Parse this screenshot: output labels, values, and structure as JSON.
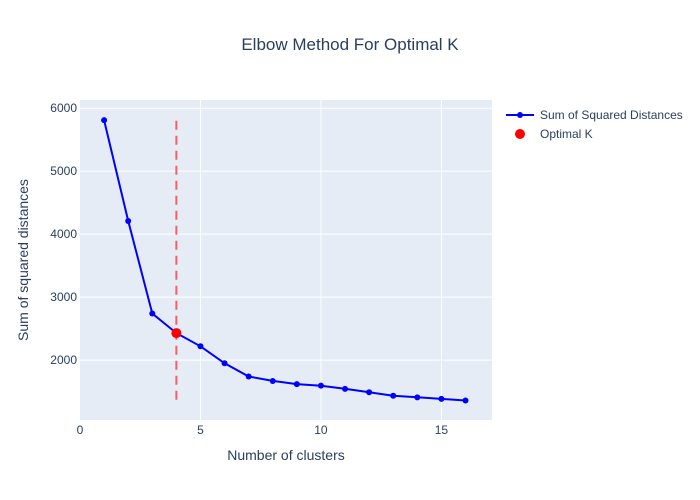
{
  "chart_data": {
    "type": "line",
    "title": "Elbow Method For Optimal K",
    "xlabel": "Number of clusters",
    "ylabel": "Sum of squared distances",
    "xlim": [
      0,
      17.1
    ],
    "ylim": [
      1050,
      6130
    ],
    "x_ticks": [
      0,
      5,
      10,
      15
    ],
    "y_ticks": [
      2000,
      3000,
      4000,
      5000,
      6000
    ],
    "grid": true,
    "legend_position": "top-right",
    "series": [
      {
        "name": "Sum of Squared Distances",
        "mode": "lines+markers",
        "color": "#0000ff",
        "x": [
          1,
          2,
          3,
          4,
          5,
          6,
          7,
          8,
          9,
          10,
          11,
          12,
          13,
          14,
          15,
          16
        ],
        "y": [
          5810,
          4210,
          2740,
          2430,
          2220,
          1950,
          1740,
          1670,
          1620,
          1595,
          1545,
          1490,
          1435,
          1410,
          1385,
          1360
        ]
      },
      {
        "name": "Optimal K",
        "mode": "markers",
        "color": "#ff0000",
        "x": [
          4
        ],
        "y": [
          2430
        ]
      }
    ],
    "annotations": [
      {
        "type": "vertical-dashed-line",
        "x": 4,
        "y_range": [
          1330,
          5800
        ],
        "color": "#ff0000"
      }
    ],
    "colors": {
      "plot_background": "#e5ecf6",
      "grid": "#ffffff",
      "text": "#2a3f5f"
    }
  }
}
